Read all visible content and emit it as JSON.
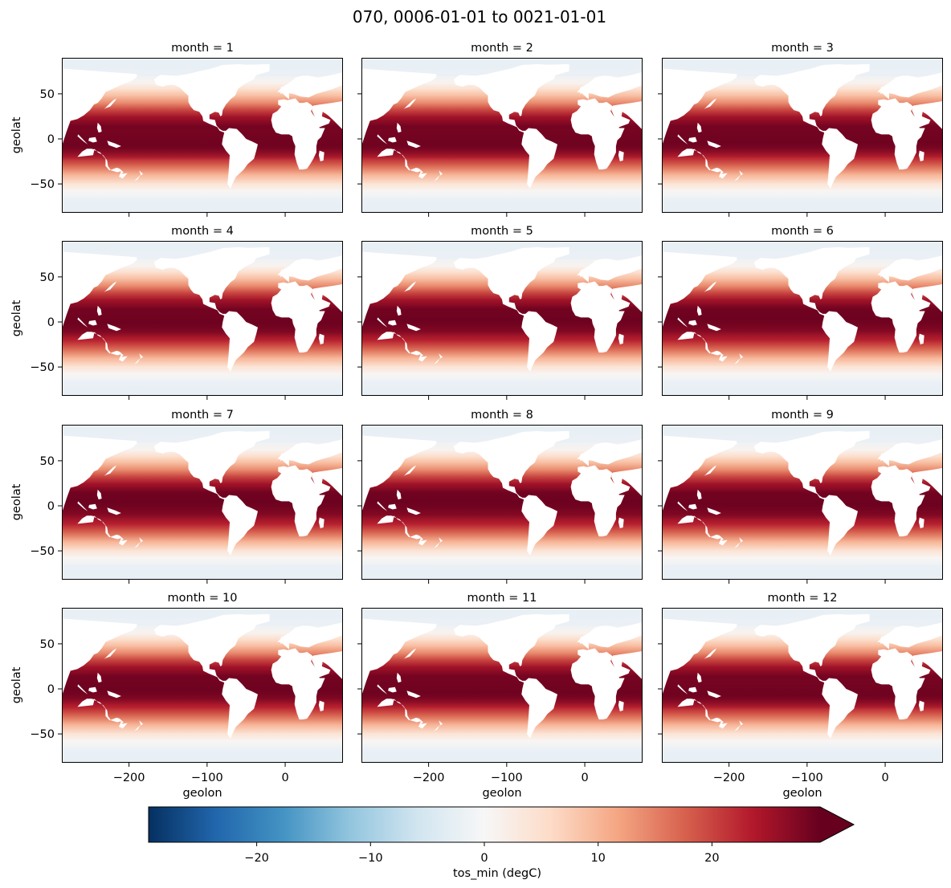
{
  "chart_data": {
    "type": "heatmap",
    "title": "070, 0006-01-01 to 0021-01-01",
    "variable": "tos_min",
    "colorbar_label": "tos_min (degC)",
    "colormap": "RdBu_r",
    "colorbar_range": [
      -29.5,
      29.5
    ],
    "colorbar_extend": "max",
    "colorbar_ticks": [
      -20,
      -10,
      0,
      10,
      20
    ],
    "colorbar_tick_labels": [
      "−20",
      "−10",
      "0",
      "10",
      "20"
    ],
    "xlabel": "geolon",
    "ylabel": "geolat",
    "xlim": [
      -286,
      74
    ],
    "ylim": [
      -82,
      90
    ],
    "xticks": [
      -200,
      -100,
      0
    ],
    "xtick_labels": [
      "−200",
      "−100",
      "0"
    ],
    "yticks": [
      -50,
      0,
      50
    ],
    "ytick_labels": [
      "−50",
      "0",
      "50"
    ],
    "facet_key": "month",
    "panels": [
      {
        "month": 1,
        "title": "month = 1"
      },
      {
        "month": 2,
        "title": "month = 2"
      },
      {
        "month": 3,
        "title": "month = 3"
      },
      {
        "month": 4,
        "title": "month = 4"
      },
      {
        "month": 5,
        "title": "month = 5"
      },
      {
        "month": 6,
        "title": "month = 6"
      },
      {
        "month": 7,
        "title": "month = 7"
      },
      {
        "month": 8,
        "title": "month = 8"
      },
      {
        "month": 9,
        "title": "month = 9"
      },
      {
        "month": 10,
        "title": "month = 10"
      },
      {
        "month": 11,
        "title": "month = 11"
      },
      {
        "month": 12,
        "title": "month = 12"
      }
    ]
  },
  "colors": {
    "cmap_stops": [
      "#053061",
      "#2166ac",
      "#4393c3",
      "#92c5de",
      "#d1e5f0",
      "#f7f7f7",
      "#fddbc7",
      "#f4a582",
      "#d6604d",
      "#b2182b",
      "#67001f"
    ],
    "land": "#ffffff",
    "polar_ice": "#e8eff4",
    "axis": "#000000"
  }
}
